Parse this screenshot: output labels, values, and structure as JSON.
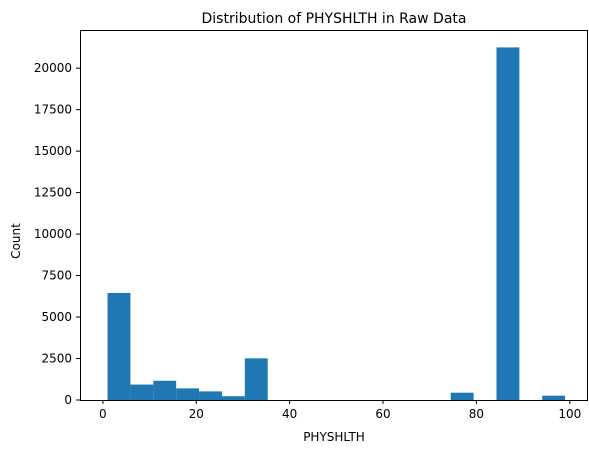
{
  "chart_data": {
    "type": "bar",
    "title": "Distribution of PHYSHLTH in Raw Data",
    "xlabel": "PHYSHLTH",
    "ylabel": "Count",
    "xlim": [
      -4.9,
      103.9
    ],
    "ylim": [
      0,
      22300
    ],
    "grid": false,
    "legend": "none",
    "bar_color": "#1f77b4",
    "x_ticks": [
      0,
      20,
      40,
      60,
      80,
      100
    ],
    "y_ticks": [
      0,
      2500,
      5000,
      7500,
      10000,
      12500,
      15000,
      17500,
      20000
    ],
    "bins": [
      {
        "x0": 1.0,
        "x1": 5.9,
        "count": 6450
      },
      {
        "x0": 5.9,
        "x1": 10.8,
        "count": 930
      },
      {
        "x0": 10.8,
        "x1": 15.7,
        "count": 1160
      },
      {
        "x0": 15.7,
        "x1": 20.6,
        "count": 700
      },
      {
        "x0": 20.6,
        "x1": 25.5,
        "count": 520
      },
      {
        "x0": 25.5,
        "x1": 30.4,
        "count": 230
      },
      {
        "x0": 30.4,
        "x1": 35.3,
        "count": 2510
      },
      {
        "x0": 35.3,
        "x1": 40.2,
        "count": 0
      },
      {
        "x0": 40.2,
        "x1": 45.1,
        "count": 0
      },
      {
        "x0": 45.1,
        "x1": 50.0,
        "count": 0
      },
      {
        "x0": 50.0,
        "x1": 54.9,
        "count": 0
      },
      {
        "x0": 54.9,
        "x1": 59.8,
        "count": 0
      },
      {
        "x0": 59.8,
        "x1": 64.7,
        "count": 0
      },
      {
        "x0": 64.7,
        "x1": 69.6,
        "count": 0
      },
      {
        "x0": 69.6,
        "x1": 74.5,
        "count": 0
      },
      {
        "x0": 74.5,
        "x1": 79.4,
        "count": 440
      },
      {
        "x0": 79.4,
        "x1": 84.3,
        "count": 0
      },
      {
        "x0": 84.3,
        "x1": 89.2,
        "count": 21250
      },
      {
        "x0": 89.2,
        "x1": 94.1,
        "count": 0
      },
      {
        "x0": 94.1,
        "x1": 99.0,
        "count": 260
      }
    ]
  }
}
